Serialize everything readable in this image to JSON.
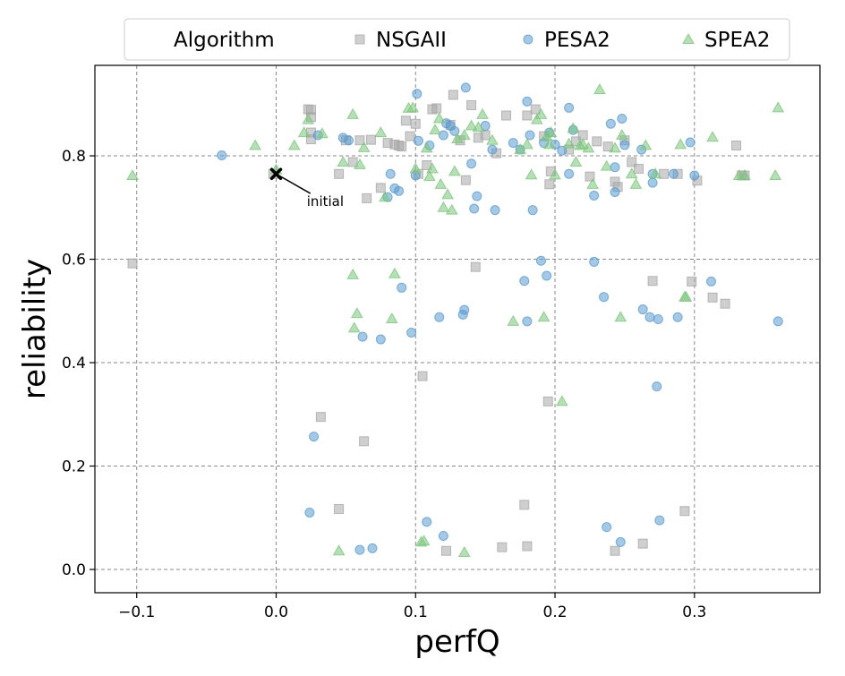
{
  "chart_data": {
    "type": "scatter",
    "title": "",
    "xlabel": "perfQ",
    "ylabel": "reliability",
    "xlim": [
      -0.13,
      0.39
    ],
    "ylim": [
      -0.045,
      0.975
    ],
    "xticks": [
      -0.1,
      0.0,
      0.1,
      0.2,
      0.3
    ],
    "xtick_labels": [
      "−0.1",
      "0.0",
      "0.1",
      "0.2",
      "0.3"
    ],
    "yticks": [
      0.0,
      0.2,
      0.4,
      0.6,
      0.8
    ],
    "ytick_labels": [
      "0.0",
      "0.2",
      "0.4",
      "0.6",
      "0.8"
    ],
    "grid": true,
    "legend": {
      "placement": "top",
      "title": "Algorithm",
      "entries": [
        "NSGAII",
        "PESA2",
        "SPEA2"
      ]
    },
    "annotations": [
      {
        "text": "initial",
        "x": 0.0,
        "y": 0.765,
        "marker": "x",
        "text_x": 0.022,
        "text_y": 0.703
      }
    ],
    "series": [
      {
        "name": "NSGAII",
        "marker": "square",
        "color": "#a8a8a8",
        "points": [
          [
            -0.103,
            0.592
          ],
          [
            -0.002,
            0.765
          ],
          [
            0.023,
            0.89
          ],
          [
            0.025,
            0.889
          ],
          [
            0.025,
            0.875
          ],
          [
            0.025,
            0.845
          ],
          [
            0.025,
            0.832
          ],
          [
            0.032,
            0.295
          ],
          [
            0.045,
            0.765
          ],
          [
            0.045,
            0.117
          ],
          [
            0.05,
            0.83
          ],
          [
            0.055,
            0.788
          ],
          [
            0.06,
            0.83
          ],
          [
            0.063,
            0.248
          ],
          [
            0.065,
            0.718
          ],
          [
            0.068,
            0.831
          ],
          [
            0.075,
            0.738
          ],
          [
            0.08,
            0.825
          ],
          [
            0.085,
            0.822
          ],
          [
            0.088,
            0.82
          ],
          [
            0.09,
            0.818
          ],
          [
            0.093,
            0.868
          ],
          [
            0.096,
            0.838
          ],
          [
            0.1,
            0.862
          ],
          [
            0.102,
            0.765
          ],
          [
            0.105,
            0.374
          ],
          [
            0.108,
            0.782
          ],
          [
            0.112,
            0.89
          ],
          [
            0.115,
            0.892
          ],
          [
            0.122,
            0.036
          ],
          [
            0.125,
            0.86
          ],
          [
            0.127,
            0.918
          ],
          [
            0.132,
            0.83
          ],
          [
            0.136,
            0.753
          ],
          [
            0.14,
            0.898
          ],
          [
            0.143,
            0.585
          ],
          [
            0.145,
            0.835
          ],
          [
            0.15,
            0.84
          ],
          [
            0.158,
            0.805
          ],
          [
            0.162,
            0.043
          ],
          [
            0.165,
            0.878
          ],
          [
            0.178,
            0.125
          ],
          [
            0.18,
            0.045
          ],
          [
            0.18,
            0.878
          ],
          [
            0.186,
            0.89
          ],
          [
            0.192,
            0.838
          ],
          [
            0.195,
            0.325
          ],
          [
            0.196,
            0.745
          ],
          [
            0.197,
            0.77
          ],
          [
            0.21,
            0.812
          ],
          [
            0.215,
            0.828
          ],
          [
            0.22,
            0.84
          ],
          [
            0.225,
            0.76
          ],
          [
            0.23,
            0.828
          ],
          [
            0.238,
            0.818
          ],
          [
            0.243,
            0.036
          ],
          [
            0.243,
            0.75
          ],
          [
            0.245,
            0.74
          ],
          [
            0.25,
            0.83
          ],
          [
            0.255,
            0.788
          ],
          [
            0.26,
            0.775
          ],
          [
            0.263,
            0.05
          ],
          [
            0.27,
            0.558
          ],
          [
            0.278,
            0.765
          ],
          [
            0.288,
            0.765
          ],
          [
            0.293,
            0.113
          ],
          [
            0.298,
            0.557
          ],
          [
            0.302,
            0.752
          ],
          [
            0.313,
            0.526
          ],
          [
            0.322,
            0.514
          ],
          [
            0.33,
            0.82
          ],
          [
            0.334,
            0.762
          ],
          [
            0.336,
            0.762
          ]
        ]
      },
      {
        "name": "PESA2",
        "marker": "circle",
        "color": "#5b9bd0",
        "points": [
          [
            -0.039,
            0.801
          ],
          [
            0.024,
            0.11
          ],
          [
            0.027,
            0.257
          ],
          [
            0.03,
            0.84
          ],
          [
            0.048,
            0.835
          ],
          [
            0.052,
            0.83
          ],
          [
            0.06,
            0.038
          ],
          [
            0.062,
            0.45
          ],
          [
            0.069,
            0.041
          ],
          [
            0.075,
            0.445
          ],
          [
            0.08,
            0.72
          ],
          [
            0.082,
            0.765
          ],
          [
            0.085,
            0.737
          ],
          [
            0.088,
            0.732
          ],
          [
            0.09,
            0.545
          ],
          [
            0.097,
            0.458
          ],
          [
            0.1,
            0.762
          ],
          [
            0.101,
            0.92
          ],
          [
            0.102,
            0.829
          ],
          [
            0.108,
            0.092
          ],
          [
            0.11,
            0.82
          ],
          [
            0.117,
            0.488
          ],
          [
            0.12,
            0.065
          ],
          [
            0.12,
            0.84
          ],
          [
            0.122,
            0.863
          ],
          [
            0.125,
            0.858
          ],
          [
            0.128,
            0.848
          ],
          [
            0.134,
            0.493
          ],
          [
            0.135,
            0.502
          ],
          [
            0.136,
            0.932
          ],
          [
            0.14,
            0.785
          ],
          [
            0.142,
            0.698
          ],
          [
            0.144,
            0.722
          ],
          [
            0.15,
            0.858
          ],
          [
            0.155,
            0.812
          ],
          [
            0.157,
            0.695
          ],
          [
            0.17,
            0.825
          ],
          [
            0.175,
            0.812
          ],
          [
            0.178,
            0.558
          ],
          [
            0.18,
            0.48
          ],
          [
            0.18,
            0.905
          ],
          [
            0.182,
            0.84
          ],
          [
            0.184,
            0.695
          ],
          [
            0.19,
            0.597
          ],
          [
            0.192,
            0.825
          ],
          [
            0.194,
            0.568
          ],
          [
            0.196,
            0.845
          ],
          [
            0.2,
            0.822
          ],
          [
            0.205,
            0.81
          ],
          [
            0.21,
            0.765
          ],
          [
            0.21,
            0.893
          ],
          [
            0.213,
            0.85
          ],
          [
            0.228,
            0.723
          ],
          [
            0.228,
            0.595
          ],
          [
            0.235,
            0.527
          ],
          [
            0.237,
            0.082
          ],
          [
            0.24,
            0.862
          ],
          [
            0.243,
            0.778
          ],
          [
            0.243,
            0.73
          ],
          [
            0.247,
            0.053
          ],
          [
            0.248,
            0.872
          ],
          [
            0.25,
            0.821
          ],
          [
            0.262,
            0.812
          ],
          [
            0.263,
            0.503
          ],
          [
            0.268,
            0.488
          ],
          [
            0.27,
            0.765
          ],
          [
            0.27,
            0.748
          ],
          [
            0.273,
            0.354
          ],
          [
            0.274,
            0.484
          ],
          [
            0.275,
            0.095
          ],
          [
            0.285,
            0.765
          ],
          [
            0.288,
            0.488
          ],
          [
            0.297,
            0.826
          ],
          [
            0.3,
            0.762
          ],
          [
            0.312,
            0.557
          ],
          [
            0.36,
            0.48
          ]
        ]
      },
      {
        "name": "SPEA2",
        "marker": "triangle",
        "color": "#7cc57c",
        "points": [
          [
            -0.103,
            0.762
          ],
          [
            -0.015,
            0.82
          ],
          [
            0.0,
            0.773
          ],
          [
            0.013,
            0.82
          ],
          [
            0.02,
            0.845
          ],
          [
            0.023,
            0.87
          ],
          [
            0.033,
            0.843
          ],
          [
            0.045,
            0.036
          ],
          [
            0.048,
            0.788
          ],
          [
            0.055,
            0.88
          ],
          [
            0.055,
            0.57
          ],
          [
            0.056,
            0.467
          ],
          [
            0.058,
            0.495
          ],
          [
            0.06,
            0.783
          ],
          [
            0.063,
            0.816
          ],
          [
            0.075,
            0.845
          ],
          [
            0.078,
            0.72
          ],
          [
            0.083,
            0.485
          ],
          [
            0.085,
            0.572
          ],
          [
            0.095,
            0.892
          ],
          [
            0.098,
            0.893
          ],
          [
            0.1,
            0.775
          ],
          [
            0.104,
            0.053
          ],
          [
            0.106,
            0.055
          ],
          [
            0.108,
            0.815
          ],
          [
            0.11,
            0.76
          ],
          [
            0.112,
            0.775
          ],
          [
            0.114,
            0.85
          ],
          [
            0.117,
            0.872
          ],
          [
            0.118,
            0.745
          ],
          [
            0.12,
            0.7
          ],
          [
            0.123,
            0.725
          ],
          [
            0.126,
            0.695
          ],
          [
            0.128,
            0.77
          ],
          [
            0.13,
            0.833
          ],
          [
            0.135,
            0.84
          ],
          [
            0.135,
            0.033
          ],
          [
            0.14,
            0.858
          ],
          [
            0.145,
            0.855
          ],
          [
            0.148,
            0.88
          ],
          [
            0.155,
            0.83
          ],
          [
            0.17,
            0.48
          ],
          [
            0.175,
            0.812
          ],
          [
            0.18,
            0.822
          ],
          [
            0.183,
            0.763
          ],
          [
            0.187,
            0.87
          ],
          [
            0.19,
            0.88
          ],
          [
            0.192,
            0.488
          ],
          [
            0.194,
            0.838
          ],
          [
            0.196,
            0.822
          ],
          [
            0.197,
            0.845
          ],
          [
            0.2,
            0.763
          ],
          [
            0.205,
            0.325
          ],
          [
            0.21,
            0.823
          ],
          [
            0.213,
            0.853
          ],
          [
            0.215,
            0.788
          ],
          [
            0.218,
            0.82
          ],
          [
            0.22,
            0.822
          ],
          [
            0.224,
            0.815
          ],
          [
            0.227,
            0.745
          ],
          [
            0.232,
            0.928
          ],
          [
            0.237,
            0.78
          ],
          [
            0.243,
            0.815
          ],
          [
            0.247,
            0.488
          ],
          [
            0.248,
            0.84
          ],
          [
            0.255,
            0.765
          ],
          [
            0.258,
            0.745
          ],
          [
            0.265,
            0.82
          ],
          [
            0.272,
            0.765
          ],
          [
            0.29,
            0.822
          ],
          [
            0.293,
            0.527
          ],
          [
            0.294,
            0.527
          ],
          [
            0.313,
            0.836
          ],
          [
            0.332,
            0.762
          ],
          [
            0.336,
            0.762
          ],
          [
            0.358,
            0.762
          ],
          [
            0.36,
            0.893
          ]
        ]
      }
    ]
  }
}
